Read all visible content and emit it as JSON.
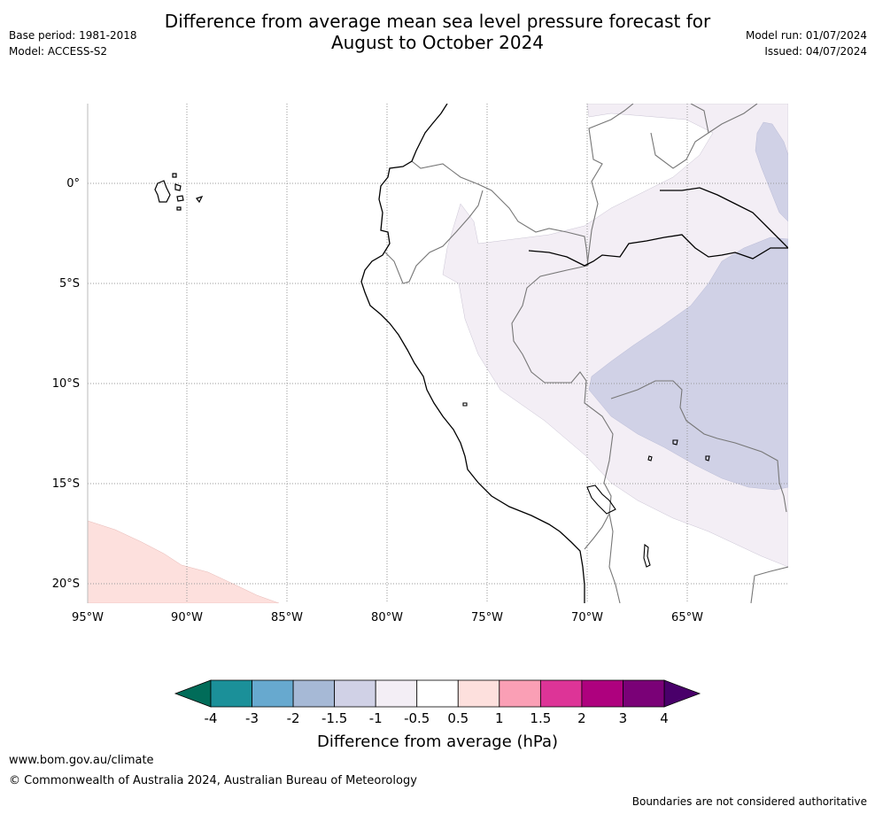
{
  "header": {
    "title_line1": "Difference from average mean sea level pressure forecast for",
    "title_line2": "August to October 2024",
    "base_period": "Base period: 1981-2018",
    "model": "Model: ACCESS-S2",
    "model_run": "Model run: 01/07/2024",
    "issued": "Issued: 04/07/2024"
  },
  "map": {
    "region": "Peru / western South America",
    "lon_range": [
      -95,
      -60
    ],
    "lat_range": [
      -21,
      4
    ],
    "lat_labels": [
      "0°",
      "5°S",
      "10°S",
      "15°S",
      "20°S"
    ],
    "lon_labels": [
      "95°W",
      "90°W",
      "85°W",
      "80°W",
      "75°W",
      "70°W",
      "65°W"
    ],
    "colors": {
      "neg_1_to_neg_0_5": "#f3eef5",
      "neg_1_5_to_neg_1": "#d0d1e6",
      "pos_0_5_to_1": "#fde0dd",
      "coastline": "#000000",
      "borders": "#777777",
      "grid": "#999999"
    }
  },
  "colorbar": {
    "title": "Difference from average (hPa)",
    "ticks": [
      "-4",
      "-3",
      "-2",
      "-1.5",
      "-1",
      "-0.5",
      "0.5",
      "1",
      "1.5",
      "2",
      "3",
      "4"
    ],
    "low_extend_color": "#016c59",
    "high_extend_color": "#49006a",
    "colors": [
      "#1b9099",
      "#67a9cf",
      "#a6b9d6",
      "#d0d1e6",
      "#f3eef5",
      "#ffffff",
      "#fde0dd",
      "#fa9fb5",
      "#dd3497",
      "#ae017e",
      "#7a0177"
    ]
  },
  "footer": {
    "url": "www.bom.gov.au/climate",
    "copyright": "© Commonwealth of Australia 2024, Australian Bureau of Meteorology",
    "note": "Boundaries are not considered authoritative"
  }
}
